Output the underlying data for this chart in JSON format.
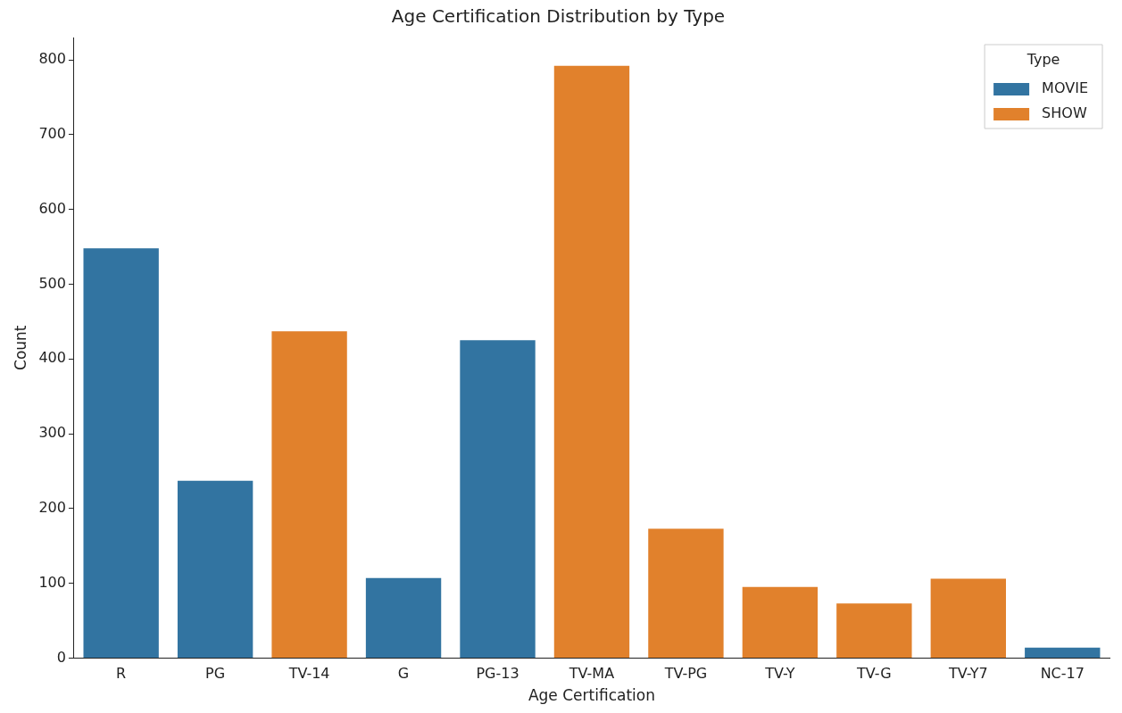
{
  "chart_data": {
    "type": "bar",
    "title": "Age Certification Distribution by Type",
    "xlabel": "Age Certification",
    "ylabel": "Count",
    "legend_title": "Type",
    "legend": "top right",
    "grid": false,
    "categories": [
      "R",
      "PG",
      "TV-14",
      "G",
      "PG-13",
      "TV-MA",
      "TV-PG",
      "TV-Y",
      "TV-G",
      "TV-Y7",
      "NC-17"
    ],
    "ylim": [
      0,
      830
    ],
    "yticks": [
      0,
      100,
      200,
      300,
      400,
      500,
      600,
      700,
      800
    ],
    "series": [
      {
        "name": "MOVIE",
        "color": "#3274a1",
        "values": [
          548,
          237,
          null,
          107,
          425,
          null,
          null,
          null,
          null,
          null,
          14
        ]
      },
      {
        "name": "SHOW",
        "color": "#e1812c",
        "values": [
          null,
          null,
          437,
          null,
          null,
          792,
          173,
          95,
          73,
          106,
          null
        ]
      }
    ]
  }
}
